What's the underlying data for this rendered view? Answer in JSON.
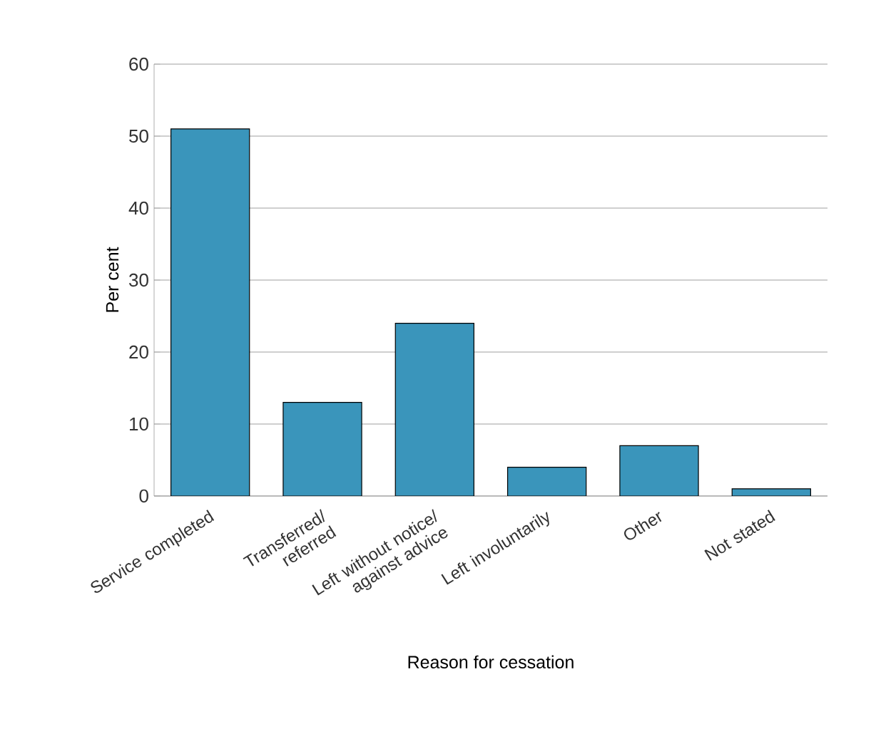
{
  "chart_data": {
    "type": "bar",
    "xlabel": "Reason for cessation",
    "ylabel": "Per cent",
    "categories": [
      "Service completed",
      "Transferred/ referred",
      "Left without notice/ against advice",
      "Left involuntarily",
      "Other",
      "Not stated"
    ],
    "values": [
      51,
      13,
      24,
      4,
      7,
      1
    ],
    "color": "#3a95bb",
    "ylim": [
      0,
      60
    ],
    "yticks": [
      0,
      10,
      20,
      30,
      40,
      50,
      60
    ],
    "grid": "y"
  }
}
